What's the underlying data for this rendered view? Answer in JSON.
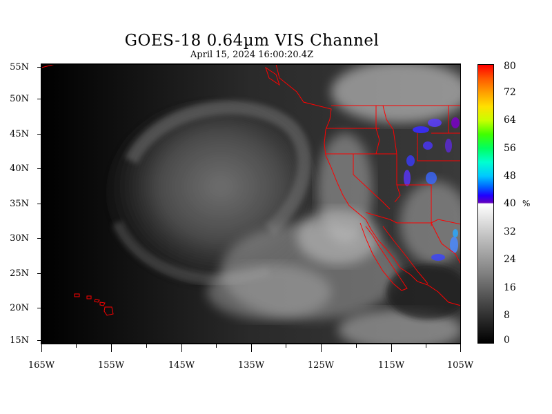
{
  "title": "GOES-18  0.64µm VIS Channel",
  "subtitle": "April 15,  2024 16:00:20.4Z",
  "lat_labels": [
    "55N",
    "50N",
    "45N",
    "40N",
    "35N",
    "30N",
    "25N",
    "20N",
    "15N"
  ],
  "lon_labels": [
    "165W",
    "155W",
    "145W",
    "135W",
    "125W",
    "115W",
    "105W"
  ],
  "colorbar": {
    "unit": "%",
    "labels": [
      "80",
      "72",
      "64",
      "56",
      "48",
      "40",
      "32",
      "24",
      "16",
      "8",
      "0"
    ],
    "range": [
      0,
      80
    ],
    "gray_range": [
      0,
      40
    ],
    "color_range": [
      40,
      80
    ]
  },
  "map_extent": {
    "lon": [
      -165,
      -105
    ],
    "lat": [
      15,
      55
    ]
  },
  "colors": {
    "borders": "#ff0000",
    "background": "#ffffff"
  }
}
